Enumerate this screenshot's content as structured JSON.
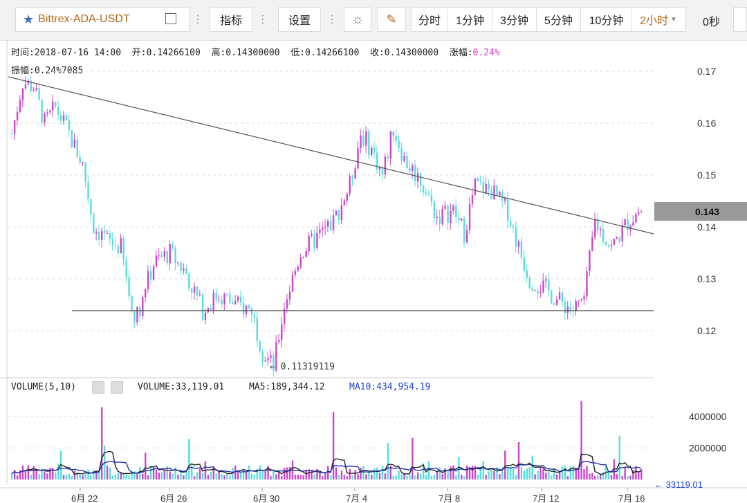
{
  "toolbar": {
    "symbol": "Bittrex-ADA-USDT",
    "indicator": "指标",
    "settings": "设置",
    "periods": [
      "分时",
      "1分钟",
      "3分钟",
      "5分钟",
      "10分钟",
      "2小时"
    ],
    "active_period": "2小时",
    "countdown": "0秒"
  },
  "info": {
    "time": "时间:2018-07-16 14:00",
    "open": "开:0.14266100",
    "high": "高:0.14300000",
    "low": "低:0.14266100",
    "close": "收:0.14300000",
    "change_label": "涨幅:",
    "change_value": "0.24%",
    "amplitude": "振幅:0.24%",
    "extra": "7085"
  },
  "price_axis": {
    "labels": [
      "0.17",
      "0.16",
      "0.15",
      "0.14",
      "0.13",
      "0.12"
    ],
    "current_price": "0.143",
    "min_marker": "0.11319119"
  },
  "volume": {
    "title": "VOLUME(5,10)",
    "volume": "VOLUME:33,119.01",
    "ma5": "MA5:189,344.12",
    "ma10": "MA10:434,954.19",
    "axis_labels": [
      "4000000",
      "2000000"
    ],
    "last_value": "33119.01"
  },
  "x_axis": [
    "6月 22",
    "6月 26",
    "6月 30",
    "7月 4",
    "7月 8",
    "7月 12",
    "7月 16"
  ],
  "colors": {
    "up": "#cc44cc",
    "down": "#55dddd",
    "ma5": "#222222",
    "ma10": "#2233aa",
    "accent": "#b5651d"
  },
  "chart_data": {
    "type": "candlestick",
    "ylim": [
      0.11,
      0.175
    ],
    "anchors": [
      [
        0,
        0.158
      ],
      [
        4,
        0.168
      ],
      [
        8,
        0.167
      ],
      [
        12,
        0.16
      ],
      [
        16,
        0.163
      ],
      [
        20,
        0.159
      ],
      [
        26,
        0.152
      ],
      [
        30,
        0.14
      ],
      [
        36,
        0.137
      ],
      [
        40,
        0.136
      ],
      [
        44,
        0.124
      ],
      [
        46,
        0.123
      ],
      [
        52,
        0.133
      ],
      [
        58,
        0.135
      ],
      [
        64,
        0.131
      ],
      [
        70,
        0.124
      ],
      [
        76,
        0.127
      ],
      [
        82,
        0.125
      ],
      [
        88,
        0.124
      ],
      [
        92,
        0.116
      ],
      [
        96,
        0.113
      ],
      [
        100,
        0.125
      ],
      [
        106,
        0.135
      ],
      [
        112,
        0.138
      ],
      [
        118,
        0.141
      ],
      [
        124,
        0.148
      ],
      [
        128,
        0.158
      ],
      [
        132,
        0.155
      ],
      [
        136,
        0.15
      ],
      [
        140,
        0.159
      ],
      [
        144,
        0.153
      ],
      [
        150,
        0.149
      ],
      [
        156,
        0.142
      ],
      [
        162,
        0.143
      ],
      [
        166,
        0.139
      ],
      [
        170,
        0.148
      ],
      [
        176,
        0.147
      ],
      [
        182,
        0.143
      ],
      [
        186,
        0.136
      ],
      [
        190,
        0.13
      ],
      [
        196,
        0.128
      ],
      [
        200,
        0.126
      ],
      [
        206,
        0.124
      ],
      [
        210,
        0.126
      ],
      [
        214,
        0.141
      ],
      [
        220,
        0.136
      ],
      [
        226,
        0.141
      ],
      [
        230,
        0.143
      ]
    ]
  }
}
